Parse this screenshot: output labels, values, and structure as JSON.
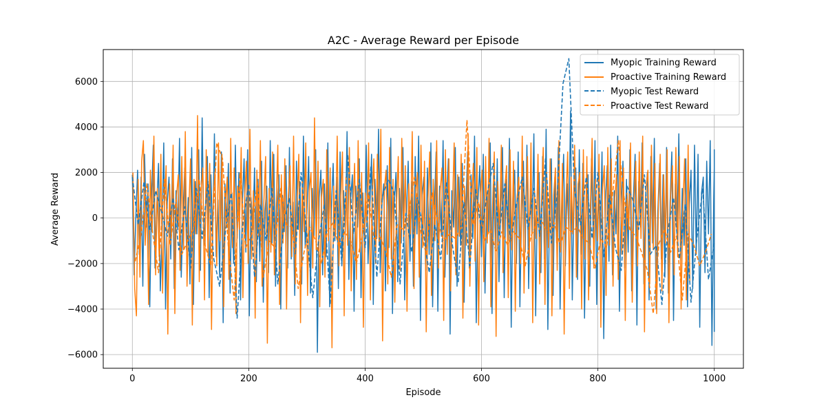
{
  "chart_data": {
    "type": "line",
    "title": "A2C - Average Reward per Episode",
    "xlabel": "Episode",
    "ylabel": "Average Reward",
    "xlim": [
      -50,
      1050
    ],
    "ylim": [
      -6600,
      7400
    ],
    "xticks": [
      0,
      200,
      400,
      600,
      800,
      1000
    ],
    "yticks": [
      -6000,
      -4000,
      -2000,
      0,
      2000,
      4000,
      6000
    ],
    "xtick_labels": [
      "0",
      "200",
      "400",
      "600",
      "800",
      "1000"
    ],
    "ytick_labels": [
      "−6000",
      "−4000",
      "−2000",
      "0",
      "2000",
      "4000",
      "6000"
    ],
    "grid": true,
    "legend_position": "top-right",
    "colors": {
      "myopic": "#1f77b4",
      "proactive": "#ff7f0e"
    },
    "series": [
      {
        "name": "Myopic Training Reward",
        "style": "solid",
        "color": "#1f77b4",
        "x_start": 0,
        "x_step": 3,
        "values": [
          1900,
          -2500,
          0,
          2100,
          -1600,
          1800,
          -3000,
          2800,
          -400,
          1500,
          -3900,
          1000,
          3200,
          -2200,
          600,
          2400,
          -3200,
          -800,
          3300,
          -4000,
          700,
          1800,
          -1800,
          2600,
          -3100,
          1200,
          -500,
          3500,
          -2600,
          100,
          2200,
          -1400,
          900,
          -2900,
          3100,
          -3800,
          1600,
          -700,
          3000,
          -2300,
          4400,
          -1200,
          400,
          2700,
          -3500,
          1900,
          -1000,
          3700,
          -1700,
          800,
          -2600,
          2900,
          -4600,
          1500,
          -300,
          2400,
          -3300,
          1100,
          -2000,
          3200,
          -900,
          2000,
          -3600,
          600,
          2600,
          -1500,
          3000,
          -4300,
          900,
          -500,
          2200,
          -2800,
          1700,
          -1900,
          2500,
          -3700,
          300,
          1400,
          -2400,
          3400,
          -1100,
          2800,
          -3000,
          600,
          1900,
          -4000,
          1000,
          -600,
          2300,
          -2200,
          3100,
          -1800,
          700,
          -3400,
          2500,
          -500,
          1600,
          -2900,
          3600,
          -1300,
          200,
          2700,
          -3300,
          1300,
          -800,
          3000,
          -5900,
          900,
          2100,
          -2500,
          1500,
          -1700,
          3300,
          -3900,
          400,
          2400,
          -1000,
          1800,
          -3100,
          2900,
          -2100,
          1200,
          -600,
          3800,
          -2700,
          800,
          1900,
          -4100,
          1400,
          -400,
          2600,
          -3500,
          1100,
          -1500,
          3200,
          -2000,
          300,
          2800,
          -3800,
          1700,
          -900,
          3900,
          -2400,
          700,
          1500,
          -3200,
          2300,
          -1300,
          3500,
          -4200,
          600,
          2000,
          -2800,
          1300,
          -1100,
          3100,
          -3600,
          200,
          2500,
          -1900,
          1600,
          -3000,
          2700,
          -700,
          3600,
          -4500,
          1000,
          1800,
          -2300,
          2200,
          -1600,
          3300,
          -3900,
          500,
          2900,
          -4100,
          1400,
          -800,
          3400,
          -2600,
          700,
          2600,
          -5100,
          1200,
          -400,
          3100,
          -3000,
          1800,
          -1200,
          2400,
          -3700,
          300,
          2900,
          -2200,
          1900,
          -900,
          3600,
          -4600,
          800,
          2300,
          -1700,
          2800,
          -3300,
          1100,
          -600,
          3300,
          -4200,
          1500,
          -1400,
          2600,
          -2800,
          600,
          3100,
          -3500,
          1700,
          -1000,
          3500,
          -4800,
          900,
          2100,
          -2000,
          2900,
          -3900,
          400,
          2500,
          -1500,
          3200,
          -3100,
          1300,
          -700,
          3700,
          -4300,
          1000,
          2000,
          -2400,
          2700,
          -1800,
          3900,
          -4900,
          600,
          2600,
          -3400,
          1800,
          -1100,
          3100,
          -4000,
          200,
          2800,
          -2100,
          1500,
          -500,
          4700,
          -3600,
          1100,
          2200,
          -2700,
          3000,
          -1600,
          2400,
          -4400,
          700,
          1900,
          -3000,
          2600,
          -900,
          3400,
          -3800,
          1400,
          -1300,
          2900,
          -5300,
          800,
          2300,
          -1900,
          3200,
          -2500,
          1200,
          -700,
          3600,
          -4100,
          500,
          2500,
          -2200,
          1700,
          -1500,
          3000,
          -3200,
          900,
          2800,
          -4700,
          1600,
          -400,
          3300,
          -2900,
          1000,
          2000,
          -3600,
          2700,
          -1100,
          3500,
          -4000,
          300,
          2400,
          -1800,
          1900,
          -2600,
          3100,
          -3300,
          700,
          2900,
          -4500,
          1500,
          -800,
          3700,
          -2000,
          1300,
          -1200,
          2600,
          -3900,
          600,
          2100,
          -3100,
          3200,
          -1600,
          2800,
          -4800,
          1100,
          1800,
          -2400,
          2500,
          -700,
          3400,
          -5600,
          900,
          2200,
          -2800,
          1700,
          -3500,
          3000,
          -4200,
          2100,
          -5000
        ]
      },
      {
        "name": "Proactive Training Reward",
        "style": "solid",
        "color": "#ff7f0e",
        "x_start": 1,
        "x_step": 3,
        "values": [
          2000,
          -3100,
          -4300,
          1700,
          -2600,
          2500,
          3400,
          -1200,
          800,
          -3800,
          2100,
          -600,
          3600,
          -2500,
          1300,
          -1700,
          2800,
          -3300,
          500,
          2300,
          -5100,
          1500,
          -900,
          3200,
          -4200,
          1000,
          1900,
          -2300,
          2700,
          -1400,
          3800,
          -3000,
          400,
          2600,
          -4700,
          1700,
          -700,
          4500,
          -2800,
          1100,
          2200,
          -3600,
          3000,
          -1600,
          2400,
          -4900,
          900,
          2000,
          -2100,
          3300,
          -1000,
          2800,
          -3900,
          600,
          1800,
          -2700,
          3500,
          -1300,
          2200,
          -4200,
          1400,
          -500,
          3100,
          -3500,
          800,
          2500,
          -2000,
          3900,
          -1800,
          1200,
          -4400,
          2100,
          -800,
          3400,
          -3000,
          700,
          2700,
          -5500,
          1300,
          -1500,
          2900,
          -2500,
          400,
          3200,
          -3800,
          1900,
          -1100,
          2600,
          -4000,
          1000,
          2300,
          -1700,
          3600,
          -2900,
          500,
          2800,
          -4600,
          1600,
          -600,
          3300,
          -3400,
          1200,
          2000,
          -2200,
          4400,
          -1400,
          2500,
          -3900,
          900,
          1700,
          -2600,
          3000,
          -1000,
          2200,
          -5700,
          1400,
          -800,
          3600,
          -2100,
          700,
          2900,
          -4300,
          1800,
          -1200,
          3100,
          -3200,
          500,
          2400,
          -2700,
          3400,
          -1500,
          2000,
          -4800,
          1100,
          -400,
          3300,
          -3600,
          900,
          2600,
          -2000,
          2800,
          -1100,
          3900,
          -5400,
          1300,
          2100,
          -2900,
          3100,
          -1800,
          1700,
          -3700,
          600,
          2700,
          -2300,
          3500,
          -900,
          2300,
          -4100,
          1500,
          -700,
          3800,
          -3100,
          1000,
          2000,
          -2600,
          3200,
          -1300,
          2500,
          -5000,
          800,
          2900,
          -3400,
          1700,
          -1000,
          3400,
          -2200,
          1200,
          2200,
          -4500,
          3000,
          -1600,
          2600,
          -3200,
          400,
          3300,
          -2500,
          1900,
          -800,
          2800,
          -4400,
          1400,
          -1200,
          3700,
          -3000,
          700,
          2400,
          -1900,
          3100,
          -4700,
          1100,
          2100,
          -2800,
          2700,
          -1100,
          3500,
          -3900,
          500,
          2900,
          -5200,
          1600,
          -600,
          3200,
          -2400,
          1300,
          2300,
          -3500,
          3000,
          -1400,
          2500,
          -4100,
          900,
          1800,
          -2000,
          3600,
          -3300,
          800,
          2700,
          -1700,
          3300,
          -4600,
          1200,
          -900,
          2800,
          -2900,
          600,
          3100,
          -3800,
          2000,
          -1300,
          2600,
          -4300,
          1000,
          2200,
          -2300,
          3400,
          -1500,
          2400,
          -5100,
          700,
          2900,
          -3100,
          1800,
          -700,
          3200,
          -2600,
          1500,
          2000,
          -4000,
          3000,
          -1800,
          2700,
          -3600,
          400,
          3500,
          -2200,
          1700,
          -1000,
          2800,
          -4800,
          1300,
          2300,
          -3400,
          3100,
          -1200,
          2600,
          -3000,
          900,
          1900,
          -2700,
          3400,
          -1600,
          2200,
          -4500,
          1100,
          -500,
          3300,
          -3700,
          800,
          2500,
          -2100,
          2900,
          -900,
          3600,
          -5000,
          1400,
          2100,
          -2900,
          3200,
          -1400,
          2400,
          -4200,
          600,
          2800,
          -3200,
          1900,
          -1100,
          3000,
          -4600,
          1000,
          2300,
          -2500,
          3100,
          -1700,
          2700,
          -4000,
          500,
          2600,
          -3600,
          3200,
          -2800
        ]
      },
      {
        "name": "Myopic Test Reward",
        "style": "dashed",
        "color": "#1f77b4",
        "x_start": 0,
        "x_step": 10,
        "values": [
          1800,
          -300,
          1600,
          -500,
          1200,
          300,
          -800,
          900,
          -1400,
          500,
          -2200,
          1300,
          -900,
          1600,
          -1800,
          -3000,
          -600,
          1100,
          -4400,
          -200,
          1500,
          -2600,
          600,
          -1000,
          1300,
          -2900,
          -300,
          900,
          -1600,
          2000,
          -800,
          -3500,
          -1000,
          600,
          -3800,
          1200,
          -2000,
          2800,
          -700,
          1700,
          -1300,
          2300,
          -2600,
          1000,
          1700,
          1100,
          -2900,
          200,
          -1500,
          900,
          -600,
          -2400,
          -300,
          -1800,
          1600,
          -1200,
          -2800,
          700,
          -2100,
          1300,
          -600,
          1100,
          2400,
          -800,
          1500,
          -1000,
          600,
          1800,
          -500,
          1300,
          -800,
          2600,
          -1100,
          1000,
          5900,
          7000,
          1200,
          -300,
          1800,
          -900,
          2000,
          -1700,
          1000,
          -1300,
          -2300,
          1400,
          800,
          -500,
          1900,
          -1600,
          -1200,
          -3800,
          -600,
          900,
          -1800,
          600,
          -3700,
          -900,
          1300,
          -2700,
          -1100
        ]
      },
      {
        "name": "Proactive Test Reward",
        "style": "dashed",
        "color": "#ff7f0e",
        "x_start": 5,
        "x_step": 10,
        "values": [
          -1900,
          -700,
          1500,
          -700,
          -2400,
          1700,
          -1200,
          800,
          -1600,
          -1000,
          -500,
          1700,
          -1200,
          -2100,
          3300,
          2600,
          -1300,
          -3600,
          2000,
          -1300,
          -700,
          1600,
          -2600,
          -1000,
          -1300,
          1300,
          -300,
          -400,
          -3100,
          -1500,
          -400,
          -1000,
          -2000,
          -600,
          -200,
          -1300,
          -600,
          -1000,
          -2000,
          -800,
          1100,
          -900,
          -800,
          -1400,
          -2600,
          -300,
          -500,
          200,
          1800,
          -500,
          -1600,
          1100,
          -200,
          -1000,
          -700,
          -900,
          -400,
          4300,
          -300,
          700,
          -1000,
          -500,
          -1500,
          -600,
          -1200,
          -600,
          -900,
          -2100,
          -800,
          -200,
          -200,
          -700,
          -200,
          -1200,
          -400,
          -600,
          -400,
          -900,
          -1100,
          -2200,
          -900,
          -1300,
          1000,
          3400,
          900,
          -500,
          -800,
          -1500,
          -2300,
          -4200,
          -1100,
          -500,
          -1500,
          -800,
          -3600,
          -700,
          -1200,
          -2100,
          -1500,
          -700
        ]
      }
    ]
  }
}
